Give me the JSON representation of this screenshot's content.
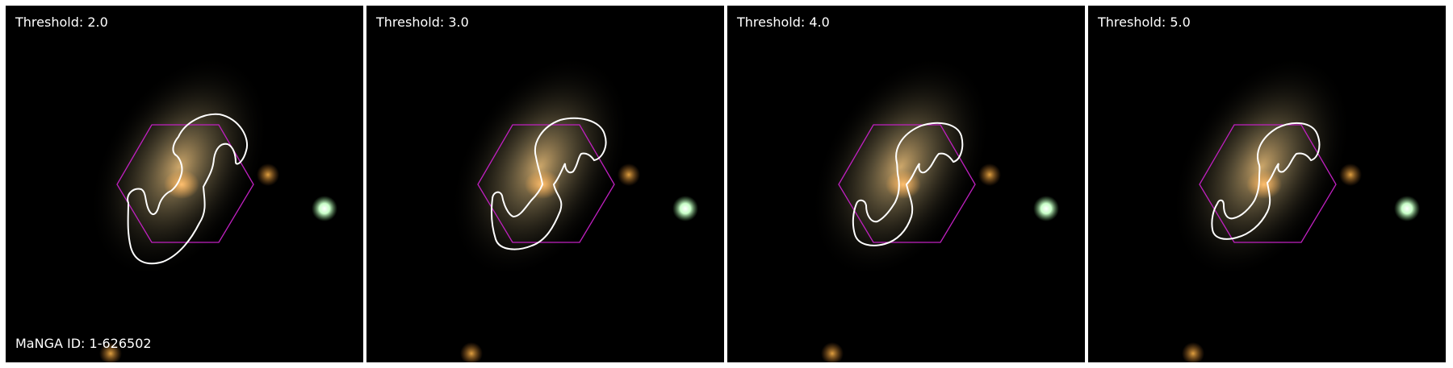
{
  "panels": [
    {
      "threshold_label": "Threshold: 2.0"
    },
    {
      "threshold_label": "Threshold: 3.0"
    },
    {
      "threshold_label": "Threshold: 4.0"
    },
    {
      "threshold_label": "Threshold: 5.0"
    }
  ],
  "manga_id_label": "MaNGA ID: 1-626502",
  "colors": {
    "background": "#000000",
    "hexagon": "#c020c0",
    "contour": "#ffffff",
    "text": "#ffffff"
  }
}
